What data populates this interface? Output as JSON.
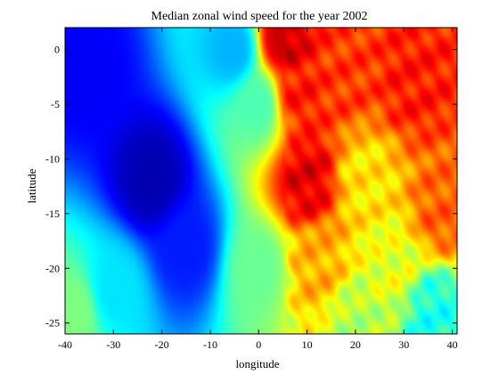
{
  "chart_data": {
    "type": "heatmap",
    "title": "Median zonal wind speed for the year 2002",
    "xlabel": "longitude",
    "ylabel": "latitude",
    "xlim": [
      -40,
      41
    ],
    "ylim": [
      -26,
      2
    ],
    "x_ticks": [
      -40,
      -30,
      -20,
      -10,
      0,
      10,
      20,
      30,
      40
    ],
    "y_ticks": [
      0,
      -5,
      -10,
      -15,
      -20,
      -25
    ],
    "colormap": "jet",
    "colorbar": "none",
    "grid": false,
    "relative_intensity_description": "strongest (low, blue) near lon -20, lat -12; highest (red) near lon 5-10, lat 0 to -13 and near lon 30-40, lat -5 to -18",
    "anchor_points": [
      {
        "lon": -22,
        "lat": -12,
        "value": 0.05
      },
      {
        "lon": -35,
        "lat": -2,
        "value": 0.12
      },
      {
        "lon": -15,
        "lat": -18,
        "value": 0.15
      },
      {
        "lon": -30,
        "lat": -22,
        "value": 0.35
      },
      {
        "lon": -38,
        "lat": -24,
        "value": 0.5
      },
      {
        "lon": -5,
        "lat": 0,
        "value": 0.3
      },
      {
        "lon": 0,
        "lat": -5,
        "value": 0.45
      },
      {
        "lon": 5,
        "lat": 1,
        "value": 0.93
      },
      {
        "lon": 8,
        "lat": -4,
        "value": 0.85
      },
      {
        "lon": 10,
        "lat": -12,
        "value": 0.9
      },
      {
        "lon": 12,
        "lat": -20,
        "value": 0.7
      },
      {
        "lon": 18,
        "lat": -2,
        "value": 0.82
      },
      {
        "lon": 22,
        "lat": -12,
        "value": 0.65
      },
      {
        "lon": 28,
        "lat": -20,
        "value": 0.6
      },
      {
        "lon": 32,
        "lat": -3,
        "value": 0.85
      },
      {
        "lon": 38,
        "lat": -15,
        "value": 0.78
      },
      {
        "lon": 36,
        "lat": -24,
        "value": 0.4
      },
      {
        "lon": 20,
        "lat": -25,
        "value": 0.55
      },
      {
        "lon": 0,
        "lat": -20,
        "value": 0.48
      }
    ]
  }
}
